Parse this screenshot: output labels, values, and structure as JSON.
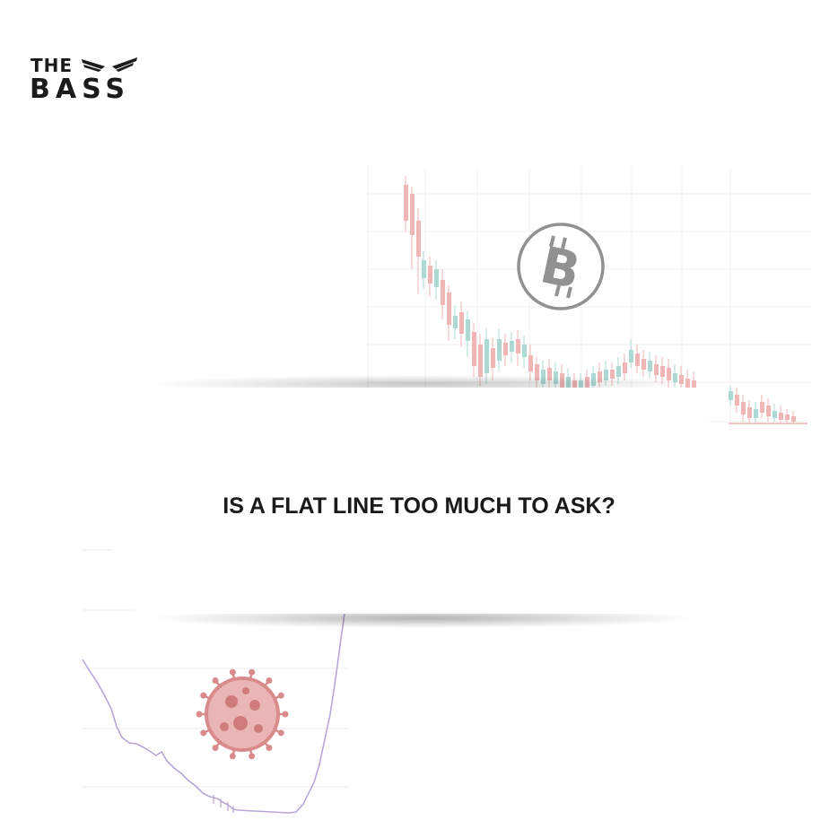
{
  "logo": {
    "line1": "THE",
    "line2": "BASS",
    "wings_icon": "wings-icon"
  },
  "headline": "IS A FLAT LINE TOO MUCH TO ASK?",
  "background_art": {
    "bitcoin_chart": {
      "icon": "bitcoin-icon",
      "style": "candlestick",
      "trend": "declining"
    },
    "covid_chart": {
      "icon": "coronavirus-icon",
      "style": "line",
      "trend": "dip-then-spike"
    }
  },
  "colors": {
    "candle_down": "#f0b3b3",
    "candle_up": "#a9d8d2",
    "covid_line": "#b8a6d6",
    "virus": "#d98a8a",
    "grid": "#f2f2f2",
    "text": "#1a1a1a"
  }
}
